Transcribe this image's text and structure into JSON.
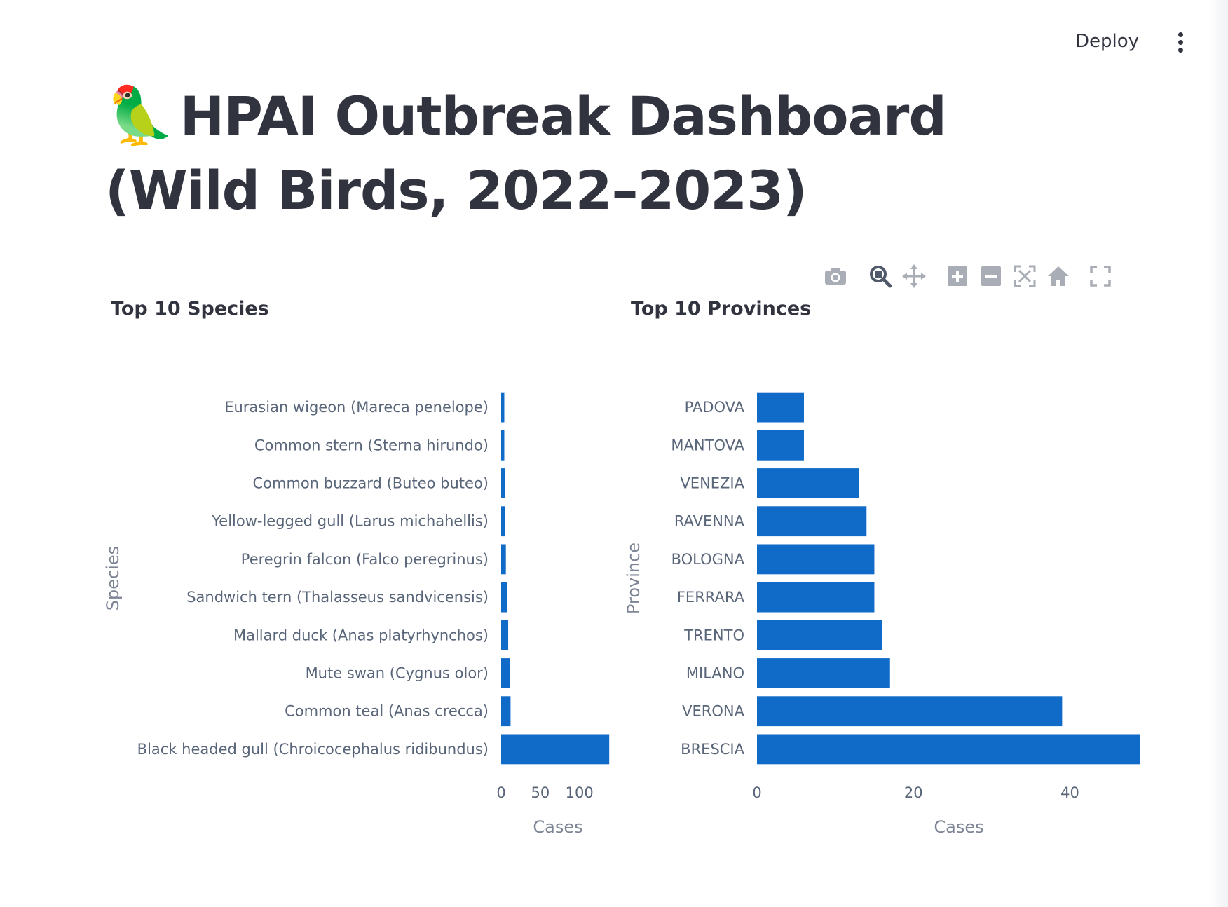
{
  "header": {
    "deploy_label": "Deploy",
    "menu_icon": "kebab-menu-icon"
  },
  "page": {
    "title_emoji": "🦜",
    "title": "HPAI Outbreak Dashboard (Wild Birds, 2022–2023)"
  },
  "modebar": {
    "icons": [
      "camera-icon",
      "zoom-icon",
      "pan-icon",
      "zoom-in-icon",
      "zoom-out-icon",
      "autoscale-icon",
      "reset-axes-icon",
      "fullscreen-icon"
    ],
    "color": "#a9adb6",
    "active_color": "#50596a"
  },
  "colors": {
    "bar": "#0f6ac8",
    "text": "#31333f",
    "tick": "#596579"
  },
  "chart_data": [
    {
      "type": "bar",
      "orientation": "horizontal",
      "title": "Top 10 Species",
      "xlabel": "Cases",
      "ylabel": "Species",
      "categories": [
        "Eurasian wigeon (Mareca penelope)",
        "Common stern (Sterna hirundo)",
        "Common buzzard (Buteo buteo)",
        "Yellow-legged gull (Larus michahellis)",
        "Peregrin falcon (Falco peregrinus)",
        "Sandwich tern (Thalasseus sandvicensis)",
        "Mallard duck (Anas platyrhynchos)",
        "Mute swan (Cygnus olor)",
        "Common teal (Anas crecca)",
        "Black headed gull (Chroicocephalus ridibundus)"
      ],
      "values": [
        4,
        4,
        5,
        5,
        6,
        8,
        9,
        11,
        12,
        138
      ],
      "xticks": [
        0,
        50,
        100
      ],
      "xlim": [
        0,
        145
      ]
    },
    {
      "type": "bar",
      "orientation": "horizontal",
      "title": "Top 10 Provinces",
      "xlabel": "Cases",
      "ylabel": "Province",
      "categories": [
        "PADOVA",
        "MANTOVA",
        "VENEZIA",
        "RAVENNA",
        "BOLOGNA",
        "FERRARA",
        "TRENTO",
        "MILANO",
        "VERONA",
        "BRESCIA"
      ],
      "values": [
        6,
        6,
        13,
        14,
        15,
        15,
        16,
        17,
        39,
        49
      ],
      "xticks": [
        0,
        20,
        40
      ],
      "xlim": [
        0,
        51.6
      ]
    }
  ]
}
